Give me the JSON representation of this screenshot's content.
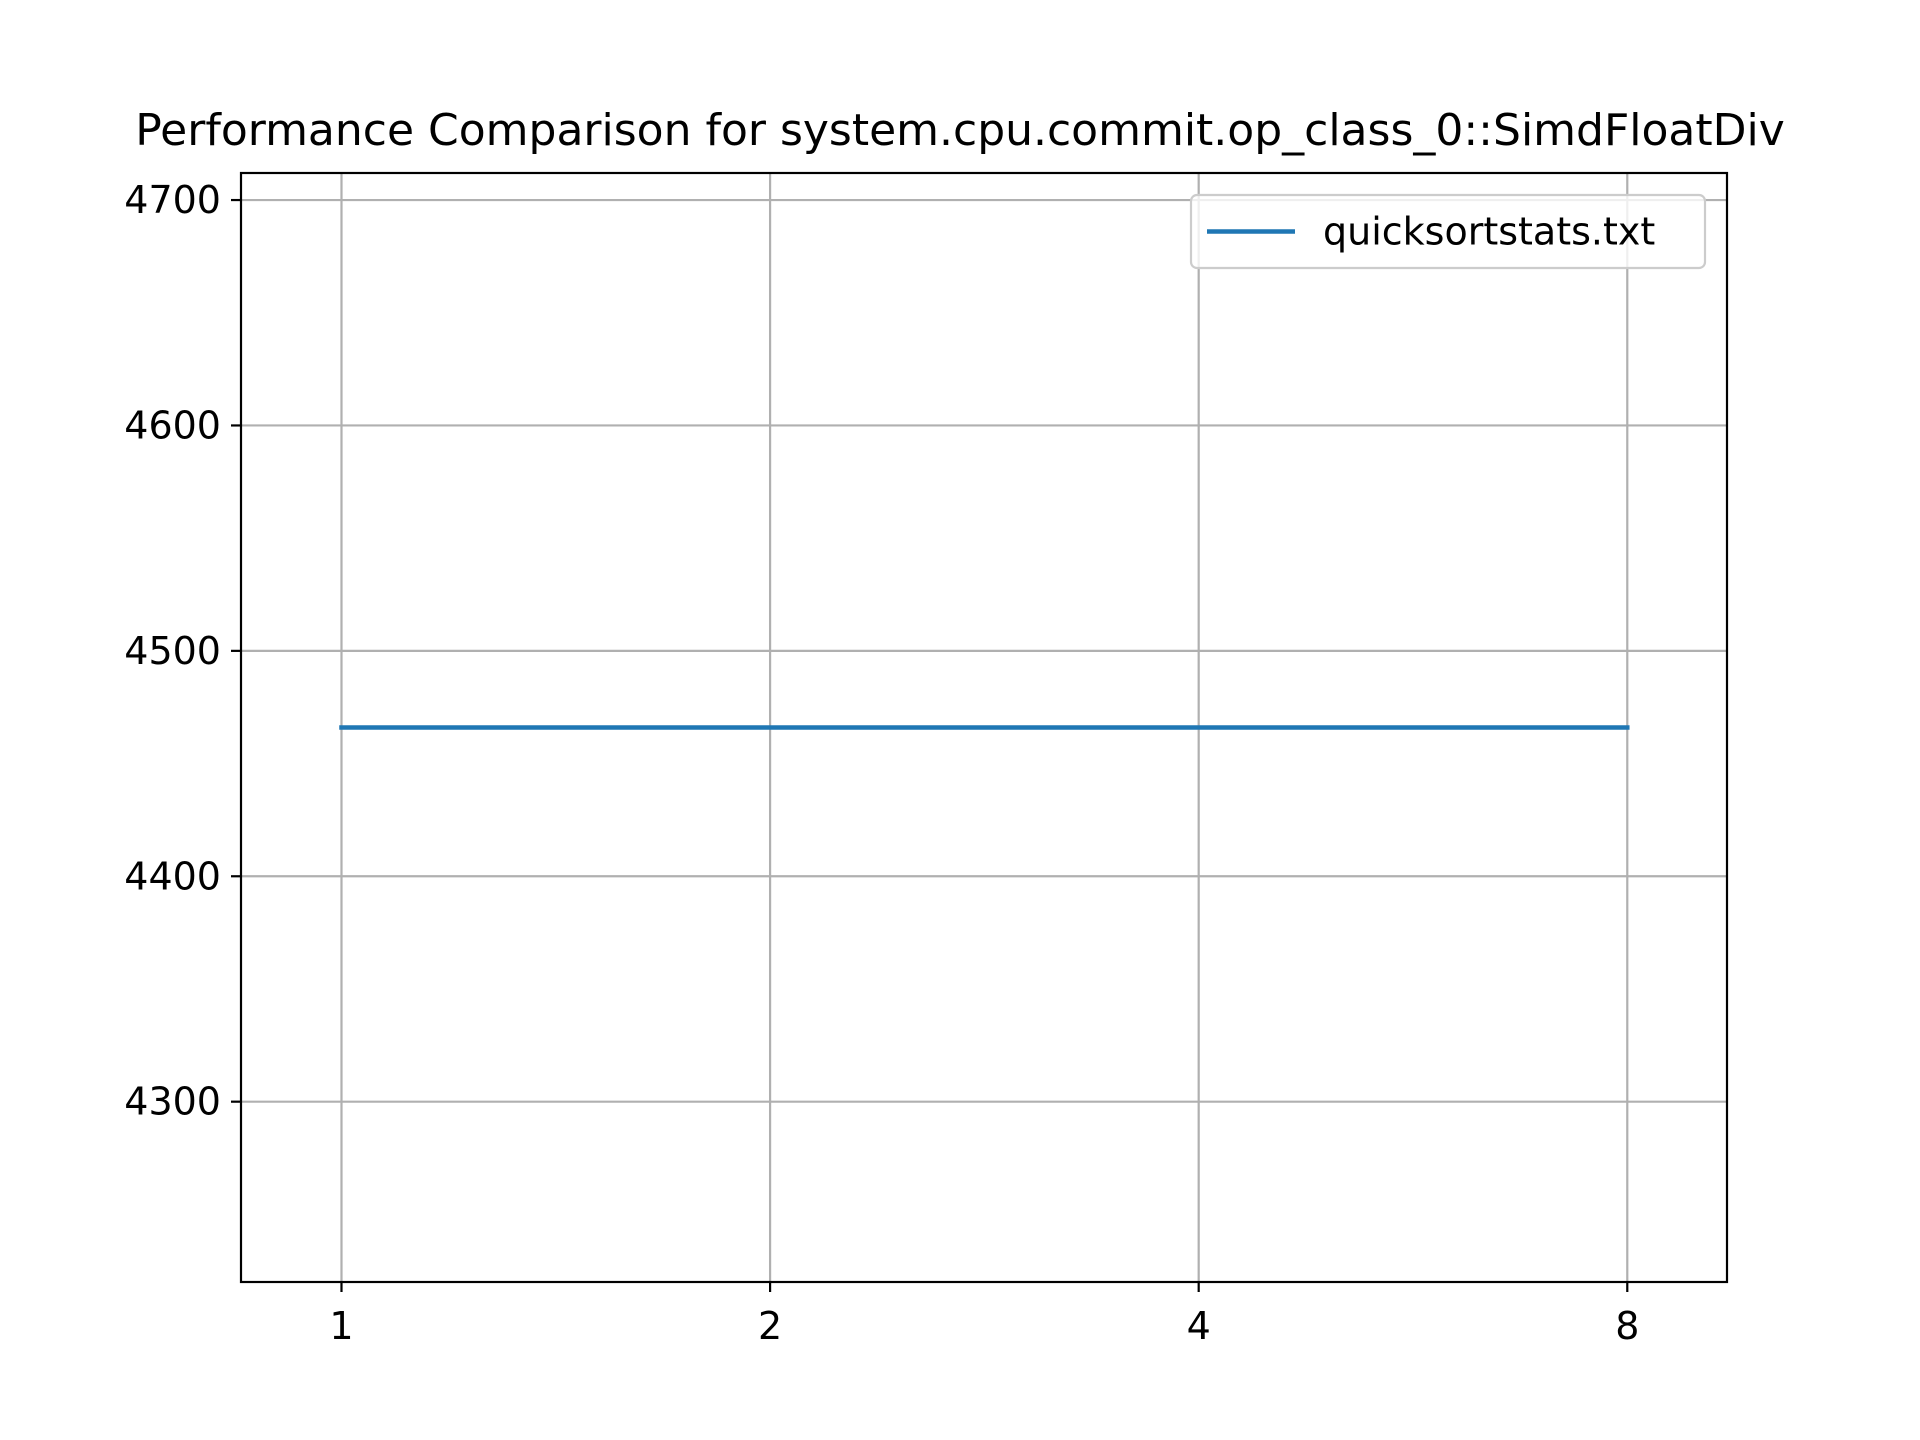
{
  "chart_data": {
    "type": "line",
    "title": "Performance Comparison for system.cpu.commit.op_class_0::SimdFloatDiv",
    "xlabel": "",
    "ylabel": "",
    "x_scale": "log2",
    "x": [
      1,
      2,
      4,
      8
    ],
    "x_ticks": [
      "1",
      "2",
      "4",
      "8"
    ],
    "xlim": [
      0.85,
      9.4
    ],
    "y_ticks": [
      4300,
      4400,
      4500,
      4600,
      4700
    ],
    "ylim": [
      4220,
      4712
    ],
    "grid": true,
    "legend_position": "top-right",
    "series": [
      {
        "name": "quicksortstats.txt",
        "color": "#1f77b4",
        "values": [
          4466,
          4466,
          4466,
          4466
        ]
      }
    ]
  }
}
